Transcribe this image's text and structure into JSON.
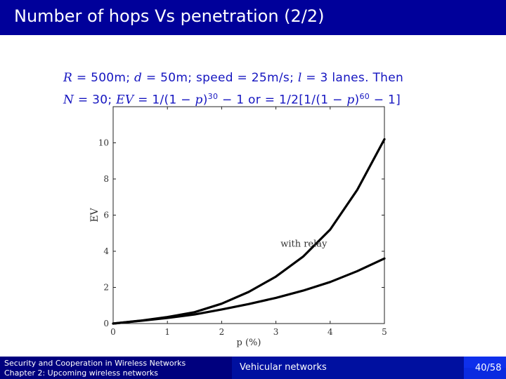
{
  "slide": {
    "title": "Number of hops Vs penetration (2/2)",
    "formula": {
      "r_sym": "R",
      "r_val": "= 500m; ",
      "d_sym": "d",
      "d_val": "= 50m; speed = 25m/s; ",
      "l_sym": "l",
      "l_val": "= 3 lanes. Then",
      "n_sym": "N",
      "n_val": "= 30; ",
      "ev_sym": "EV",
      "ev_a": "= 1/(1 − ",
      "p1": "p",
      "ev_b": ")",
      "exp1": "30",
      "ev_c": " − 1 or = 1/2[1/(1 − ",
      "p2": "p",
      "ev_d": ")",
      "exp2": "60",
      "ev_e": " − 1]"
    },
    "footer": {
      "left_line1": "Security and Cooperation in Wireless Networks",
      "left_line2": "Chapter 2: Upcoming wireless networks",
      "middle": "Vehicular networks",
      "page": "40/58"
    },
    "colors": {
      "title_bar": "#00009a",
      "formula_text": "#1515c0",
      "footer_left": "#00007e",
      "footer_mid": "#0010a0",
      "footer_right": "#0a2ae0"
    }
  },
  "chart_data": {
    "type": "line",
    "xlabel": "p (%)",
    "ylabel": "EV",
    "xlim": [
      0,
      5
    ],
    "ylim": [
      0,
      12
    ],
    "x_ticks": [
      "0",
      "1",
      "2",
      "3",
      "4",
      "5"
    ],
    "y_ticks": [
      "0",
      "2",
      "4",
      "6",
      "8",
      "10"
    ],
    "grid": false,
    "annotations": [
      {
        "text": "with relay",
        "x": 3.5,
        "y": 4.4
      }
    ],
    "series": [
      {
        "x": [
          0,
          0.5,
          1,
          1.5,
          2,
          2.5,
          3,
          3.5,
          4,
          4.5,
          5
        ],
        "values": [
          0,
          0.16,
          0.36,
          0.63,
          1.1,
          1.75,
          2.6,
          3.7,
          5.2,
          7.4,
          10.2
        ]
      },
      {
        "x": [
          0,
          0.5,
          1,
          1.5,
          2,
          2.5,
          3,
          3.5,
          4,
          4.5,
          5
        ],
        "values": [
          0,
          0.15,
          0.31,
          0.5,
          0.78,
          1.08,
          1.42,
          1.82,
          2.3,
          2.9,
          3.6
        ]
      }
    ]
  }
}
